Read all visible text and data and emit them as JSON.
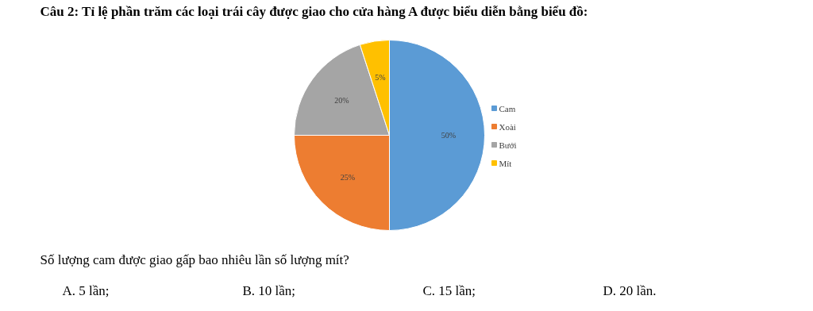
{
  "chart_data": {
    "type": "pie",
    "title": "Câu 2: Tỉ lệ phần trăm các loại trái cây được giao cho cửa hàng A được biểu diễn bằng biểu đồ:",
    "categories": [
      "Cam",
      "Xoài",
      "Bưởi",
      "Mít"
    ],
    "values": [
      50,
      25,
      20,
      5
    ],
    "colors": [
      "#5b9bd5",
      "#ed7d31",
      "#a5a5a5",
      "#ffc000"
    ],
    "value_labels": [
      "50%",
      "25%",
      "20%",
      "5%"
    ],
    "legend": "right",
    "annotations": [
      "Số lượng cam được giao gấp bao nhiêu lần số lượng mít?",
      "A. 5 lần;",
      "B. 10 lần;",
      "C. 15 lần;",
      "D. 20 lần."
    ]
  }
}
